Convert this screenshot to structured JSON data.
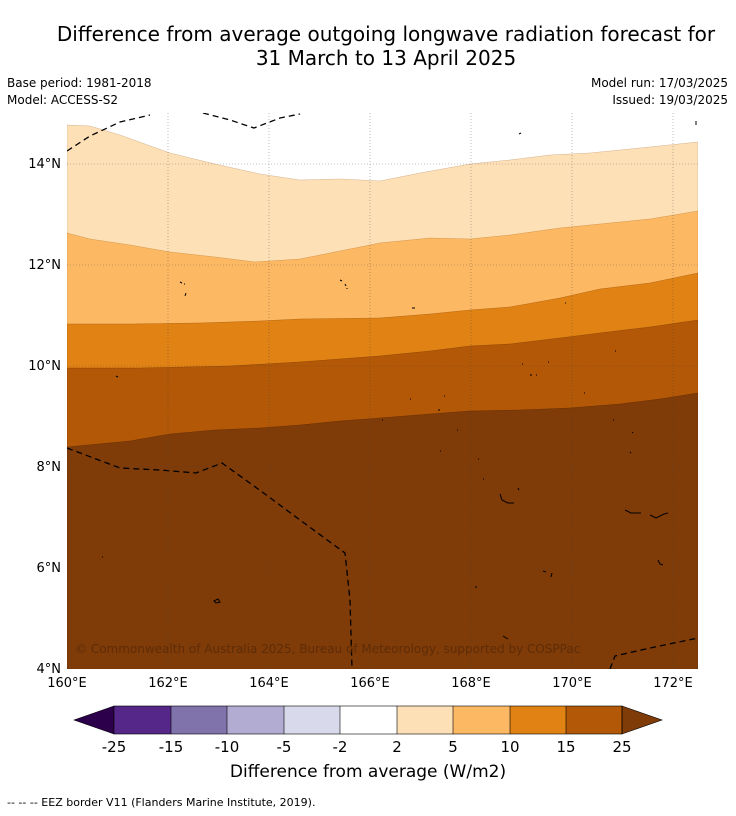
{
  "title_line1": "Difference from average outgoing longwave radiation forecast for",
  "title_line2": "31 March to 13 April 2025",
  "base_period": "Base period: 1981-2018",
  "model": "Model: ACCESS-S2",
  "model_run": "Model run: 17/03/2025",
  "issued": "Issued: 19/03/2025",
  "copyright": "© Commonwealth of Australia 2025, Bureau of Meteorology, supported by COSPPac",
  "footer": "-- -- -- EEZ border V11 (Flanders Marine Institute, 2019).",
  "map": {
    "lon_range": [
      160,
      172.5
    ],
    "lat_range": [
      4,
      15
    ],
    "x_ticks": [
      "160°E",
      "162°E",
      "164°E",
      "166°E",
      "168°E",
      "170°E",
      "172°E"
    ],
    "y_ticks": [
      "4°N",
      "6°N",
      "8°N",
      "10°N",
      "12°N",
      "14°N"
    ]
  },
  "colorbar": {
    "label": "Difference from average (W/m2)",
    "ticks": [
      "-25",
      "-15",
      "-10",
      "-5",
      "-2",
      "2",
      "5",
      "10",
      "15",
      "25"
    ],
    "under_color": "#2d004b",
    "over_color": "#7f3b08",
    "colors": [
      "#542788",
      "#8073ac",
      "#b2abd2",
      "#d8daeb",
      "#ffffff",
      "#fee0b6",
      "#fdb863",
      "#e08214",
      "#b35806"
    ]
  }
}
